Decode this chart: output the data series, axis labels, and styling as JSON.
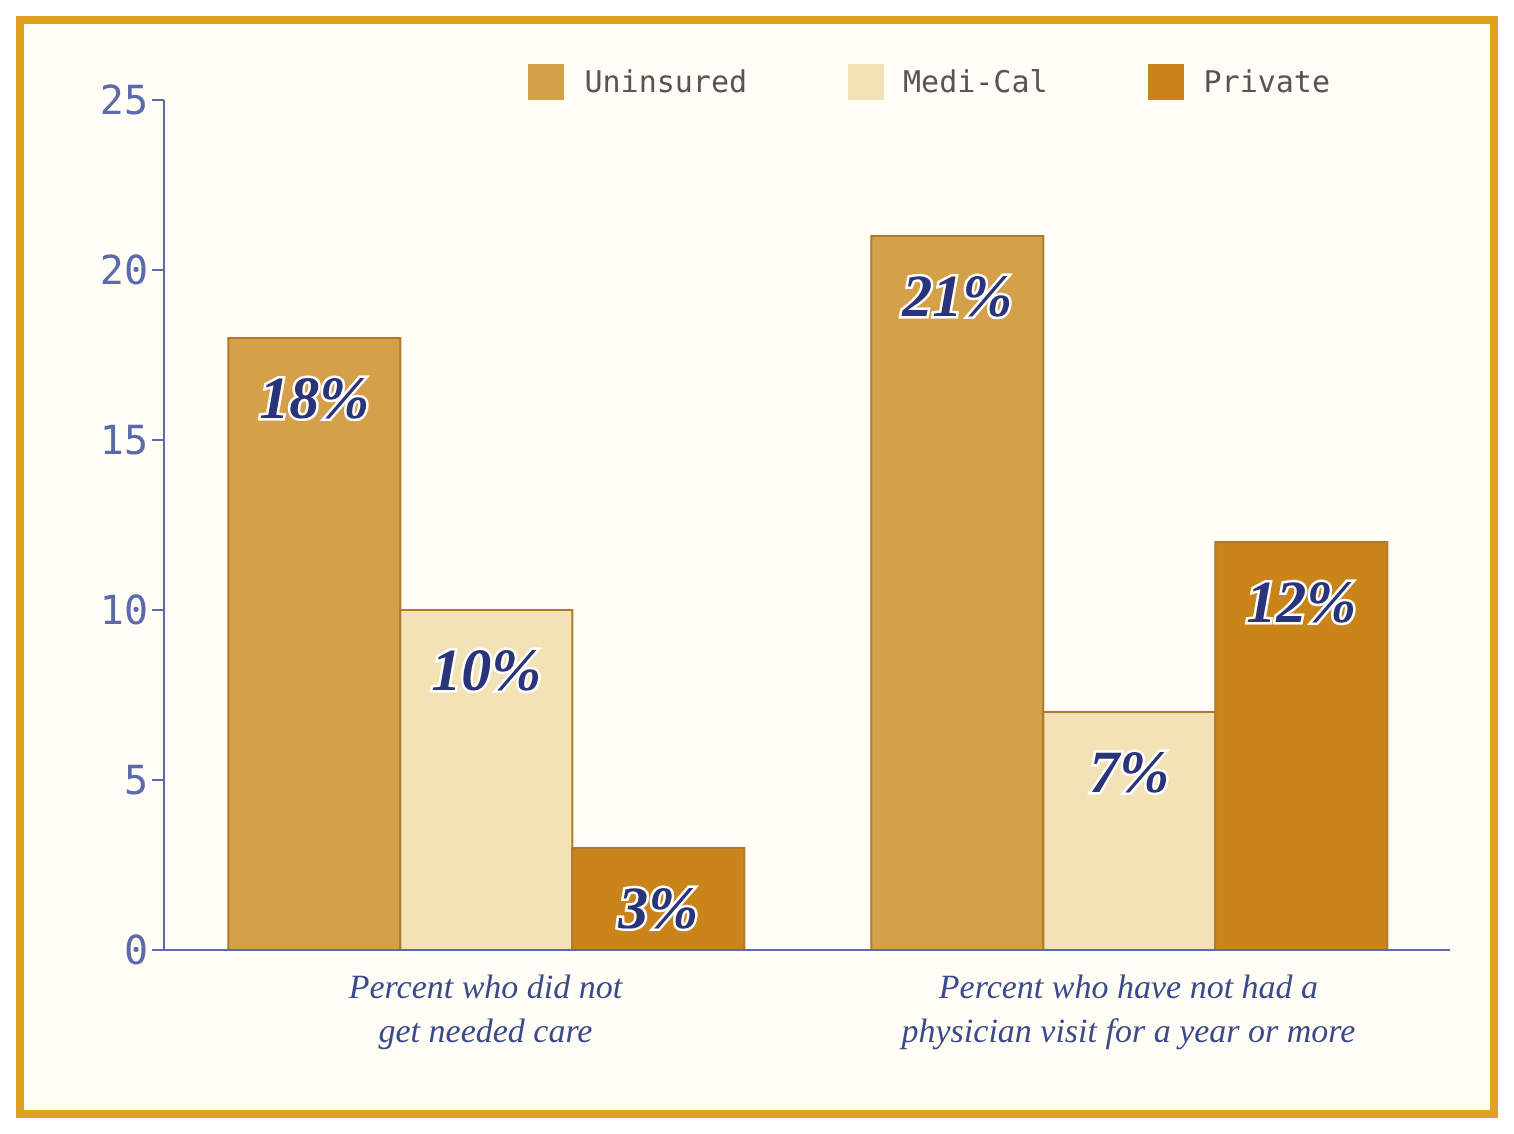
{
  "chart_data": {
    "type": "bar",
    "categories": [
      "Percent who did not get needed care",
      "Percent who have not had a physician visit for a year or more"
    ],
    "series": [
      {
        "name": "Uninsured",
        "color": "#d4a04a",
        "values": [
          18,
          21
        ],
        "value_labels": [
          "18%",
          "21%"
        ]
      },
      {
        "name": "Medi-Cal",
        "color": "#f3e2b6",
        "values": [
          10,
          7
        ],
        "value_labels": [
          "10%",
          "7%"
        ]
      },
      {
        "name": "Private",
        "color": "#c98519",
        "values": [
          3,
          12
        ],
        "value_labels": [
          "3%",
          "12%"
        ]
      }
    ],
    "ylim": [
      0,
      25
    ],
    "yticks": [
      0,
      5,
      10,
      15,
      20,
      25
    ],
    "grid": false,
    "legend": "top right"
  }
}
